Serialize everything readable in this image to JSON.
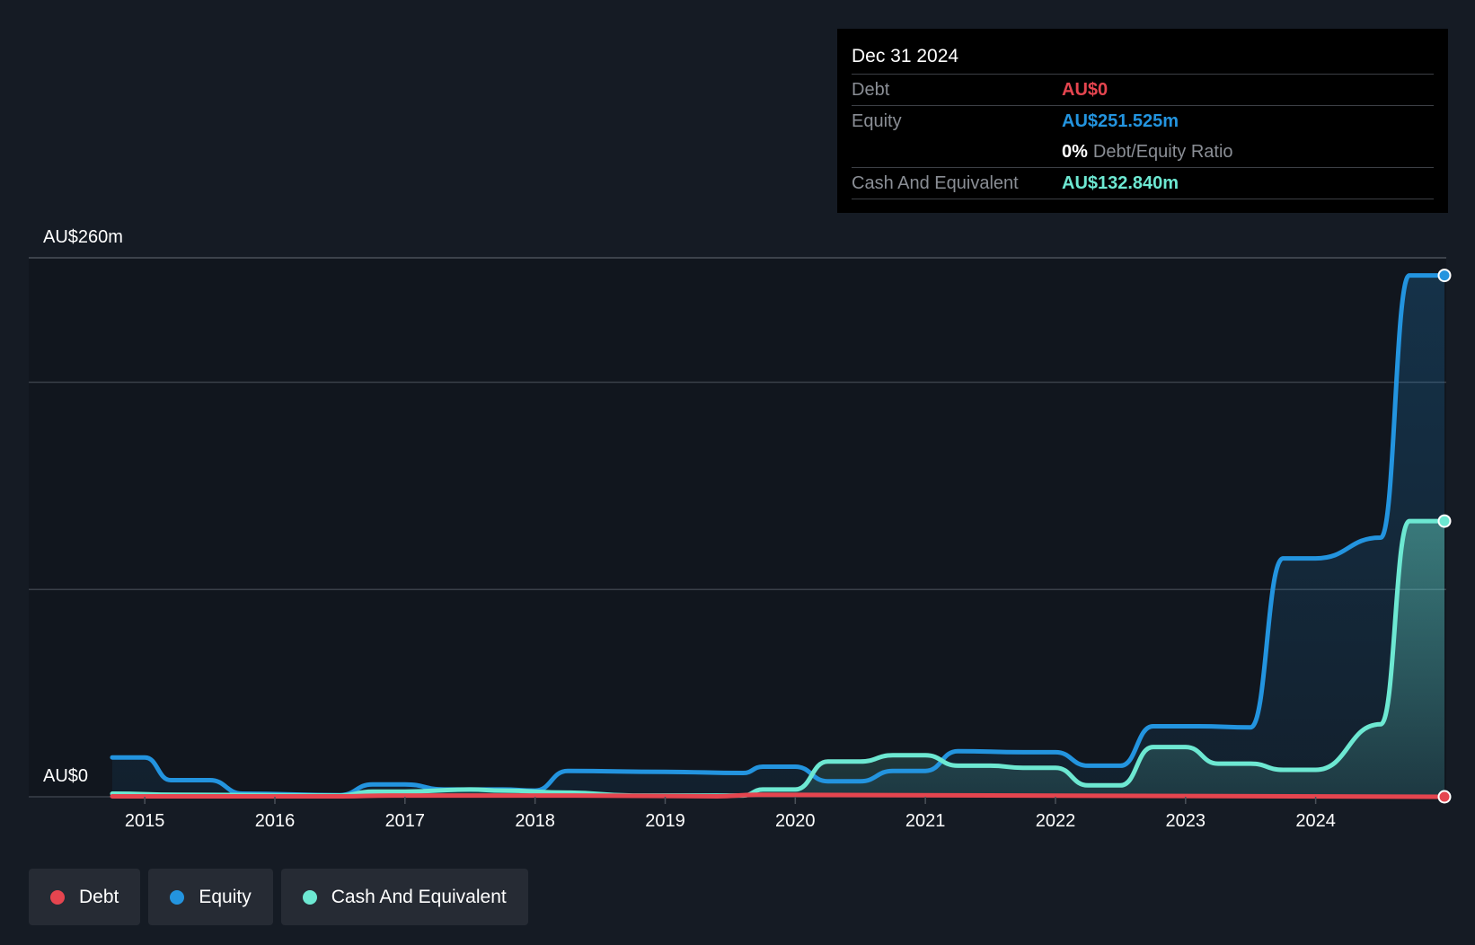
{
  "tooltip": {
    "date": "Dec 31 2024",
    "debt_label": "Debt",
    "debt_value": "AU$0",
    "equity_label": "Equity",
    "equity_value": "AU$251.525m",
    "ratio_value": "0%",
    "ratio_label": "Debt/Equity Ratio",
    "cash_label": "Cash And Equivalent",
    "cash_value": "AU$132.840m"
  },
  "legend": {
    "debt": "Debt",
    "equity": "Equity",
    "cash": "Cash And Equivalent"
  },
  "colors": {
    "background": "#151b24",
    "debt": "#e5454f",
    "equity": "#2394df",
    "cash": "#6de8d2",
    "grid": "#3a4049"
  },
  "chart_data": {
    "type": "line",
    "title": "",
    "xlabel": "",
    "ylabel": "",
    "y_top_label": "AU$260m",
    "y_bottom_label": "AU$0",
    "ylim": [
      0,
      260
    ],
    "xlim": [
      2014.55,
      2024.99
    ],
    "x_ticks": [
      {
        "value": 2015,
        "label": "2015"
      },
      {
        "value": 2016,
        "label": "2016"
      },
      {
        "value": 2017,
        "label": "2017"
      },
      {
        "value": 2018,
        "label": "2018"
      },
      {
        "value": 2019,
        "label": "2019"
      },
      {
        "value": 2020,
        "label": "2020"
      },
      {
        "value": 2021,
        "label": "2021"
      },
      {
        "value": 2022,
        "label": "2022"
      },
      {
        "value": 2023,
        "label": "2023"
      },
      {
        "value": 2024,
        "label": "2024"
      }
    ],
    "gridlines": [
      0,
      100,
      200,
      260
    ],
    "series": [
      {
        "name": "Debt",
        "key": "debt",
        "points": [
          [
            2014.75,
            0.2
          ],
          [
            2016.5,
            0.2
          ],
          [
            2016.9,
            0.6
          ],
          [
            2018.3,
            0.6
          ],
          [
            2019.4,
            0.2
          ],
          [
            2019.7,
            1.0
          ],
          [
            2024.99,
            0.0
          ]
        ]
      },
      {
        "name": "Equity",
        "key": "equity",
        "points": [
          [
            2014.75,
            19
          ],
          [
            2015.0,
            19
          ],
          [
            2015.2,
            8
          ],
          [
            2015.5,
            8
          ],
          [
            2015.75,
            1.5
          ],
          [
            2016.5,
            0.8
          ],
          [
            2016.75,
            6
          ],
          [
            2017.0,
            6
          ],
          [
            2017.3,
            3.5
          ],
          [
            2017.75,
            3.5
          ],
          [
            2018.0,
            3
          ],
          [
            2018.25,
            12.5
          ],
          [
            2019.0,
            12
          ],
          [
            2019.6,
            11.5
          ],
          [
            2019.75,
            14.5
          ],
          [
            2020.0,
            14.5
          ],
          [
            2020.25,
            7.5
          ],
          [
            2020.5,
            7.5
          ],
          [
            2020.75,
            12.5
          ],
          [
            2021.0,
            12.5
          ],
          [
            2021.25,
            22
          ],
          [
            2021.75,
            21.5
          ],
          [
            2022.0,
            21.5
          ],
          [
            2022.25,
            15
          ],
          [
            2022.5,
            15
          ],
          [
            2022.75,
            34
          ],
          [
            2023.1,
            34
          ],
          [
            2023.5,
            33.5
          ],
          [
            2023.75,
            115
          ],
          [
            2024.0,
            115
          ],
          [
            2024.5,
            125
          ],
          [
            2024.72,
            251.5
          ],
          [
            2024.99,
            251.5
          ]
        ]
      },
      {
        "name": "Cash And Equivalent",
        "key": "cash",
        "points": [
          [
            2014.75,
            1.5
          ],
          [
            2015.25,
            1.0
          ],
          [
            2016.5,
            0.6
          ],
          [
            2016.75,
            2.5
          ],
          [
            2017.0,
            2.5
          ],
          [
            2017.5,
            3.5
          ],
          [
            2017.75,
            3.0
          ],
          [
            2018.25,
            2.0
          ],
          [
            2018.75,
            0.6
          ],
          [
            2019.6,
            0.6
          ],
          [
            2019.75,
            3.5
          ],
          [
            2020.0,
            3.5
          ],
          [
            2020.25,
            17
          ],
          [
            2020.5,
            17
          ],
          [
            2020.75,
            20
          ],
          [
            2021.0,
            20
          ],
          [
            2021.25,
            15
          ],
          [
            2021.5,
            15
          ],
          [
            2021.75,
            14
          ],
          [
            2022.0,
            14
          ],
          [
            2022.25,
            5.5
          ],
          [
            2022.5,
            5.5
          ],
          [
            2022.75,
            24
          ],
          [
            2023.0,
            24
          ],
          [
            2023.25,
            16
          ],
          [
            2023.5,
            16
          ],
          [
            2023.75,
            13
          ],
          [
            2024.0,
            13
          ],
          [
            2024.5,
            35
          ],
          [
            2024.72,
            133
          ],
          [
            2024.99,
            133
          ]
        ]
      }
    ]
  }
}
